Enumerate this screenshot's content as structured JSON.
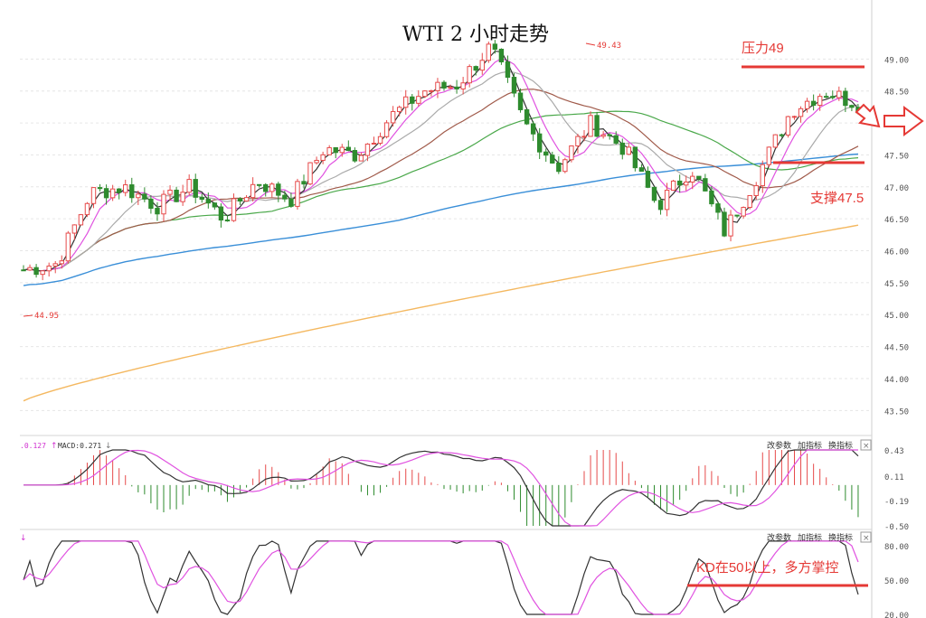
{
  "title": "WTI 2 小时走势",
  "annotations": {
    "resistance": "压力49",
    "support": "支撑47.5",
    "kd_note": "KD在50以上，多方掌控",
    "high_label": "49.43",
    "low_label": "44.95"
  },
  "macd_panel": {
    "header_left": ".0.127",
    "header_macd": "MACD:0.271",
    "buttons": [
      "改参数",
      "加指标",
      "换指标"
    ],
    "close_symbol": "×",
    "ticks": [
      "0.43",
      "0.11",
      "-0.19",
      "-0.50"
    ]
  },
  "kd_panel": {
    "buttons": [
      "改参数",
      "加指标",
      "换指标"
    ],
    "close_symbol": "×",
    "ticks": [
      "80.00",
      "50.00",
      "20.00"
    ]
  },
  "colors": {
    "up": "#e64b4b",
    "down": "#2e8b2e",
    "annotation": "#e53935",
    "ma_short": "#333333",
    "ma_pink": "#e052e0",
    "ma_gray": "#aaaaaa",
    "ma_brown": "#a05a4a",
    "ma_green": "#4aa84a",
    "ma_blue": "#3a8fd8",
    "ma_orange": "#f4b860"
  },
  "chart_data": {
    "type": "candlestick",
    "title": "WTI 2 小时走势",
    "y_ticks": [
      43.5,
      44.0,
      44.5,
      45.0,
      45.5,
      46.0,
      46.5,
      47.0,
      47.5,
      48.0,
      48.5,
      49.0
    ],
    "ylim": [
      43.25,
      49.5
    ],
    "resistance_level": 49.0,
    "support_level": 47.5,
    "high": 49.43,
    "low": 44.95,
    "key_closes": [
      45.7,
      45.8,
      46.9,
      47.0,
      46.7,
      47.0,
      46.5,
      47.1,
      46.8,
      47.6,
      47.5,
      48.1,
      48.5,
      48.6,
      49.2,
      48.0,
      47.3,
      48.0,
      47.6,
      46.7,
      47.3,
      46.3,
      47.2,
      48.2,
      48.5,
      48.3
    ],
    "candle_count": 132,
    "series": [
      {
        "name": "ma_orange",
        "start": 43.65,
        "end": 46.4
      },
      {
        "name": "ma_blue",
        "start": 45.35,
        "end": 47.45
      },
      {
        "name": "ma_green"
      },
      {
        "name": "ma_brown"
      },
      {
        "name": "ma_gray"
      },
      {
        "name": "ma_pink"
      },
      {
        "name": "ma_short"
      }
    ],
    "macd": {
      "ylim": [
        -0.5,
        0.43
      ],
      "ticks": [
        0.43,
        0.11,
        -0.19,
        -0.5
      ]
    },
    "kd": {
      "ylim": [
        20,
        80
      ],
      "ticks": [
        80,
        50,
        20
      ],
      "threshold": 50
    }
  }
}
